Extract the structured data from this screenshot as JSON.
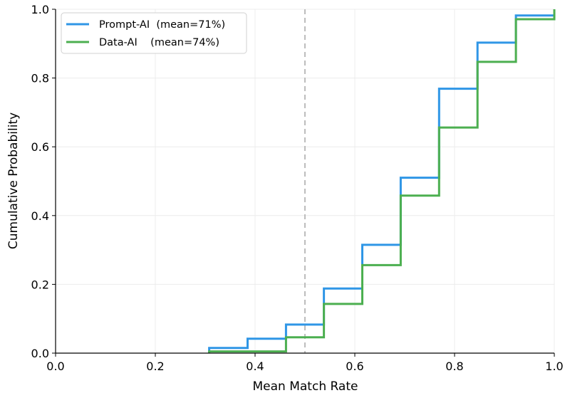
{
  "chart_data": {
    "type": "line",
    "step": true,
    "xlabel": "Mean Match Rate",
    "ylabel": "Cumulative Probability",
    "xlim": [
      0.0,
      1.0
    ],
    "ylim": [
      0.0,
      1.0
    ],
    "xticks": [
      "0.0",
      "0.2",
      "0.4",
      "0.6",
      "0.8",
      "1.0"
    ],
    "yticks": [
      "0.0",
      "0.2",
      "0.4",
      "0.6",
      "0.8",
      "1.0"
    ],
    "grid": true,
    "legend_position": "top-left",
    "reference_line": {
      "x": 0.5,
      "style": "dashed",
      "color": "#bdbdbd"
    },
    "series": [
      {
        "name": "Prompt-AI  (mean=71%)",
        "color": "#2f96e6",
        "x": [
          0.308,
          0.385,
          0.462,
          0.538,
          0.615,
          0.692,
          0.769,
          0.846,
          0.923,
          1.0
        ],
        "y": [
          0.015,
          0.042,
          0.083,
          0.188,
          0.315,
          0.51,
          0.769,
          0.903,
          0.982,
          1.0
        ]
      },
      {
        "name": "Data-AI    (mean=74%)",
        "color": "#4caf50",
        "x": [
          0.308,
          0.462,
          0.538,
          0.615,
          0.692,
          0.769,
          0.846,
          0.923,
          1.0
        ],
        "y": [
          0.005,
          0.046,
          0.143,
          0.256,
          0.458,
          0.656,
          0.847,
          0.971,
          1.0
        ]
      }
    ]
  }
}
